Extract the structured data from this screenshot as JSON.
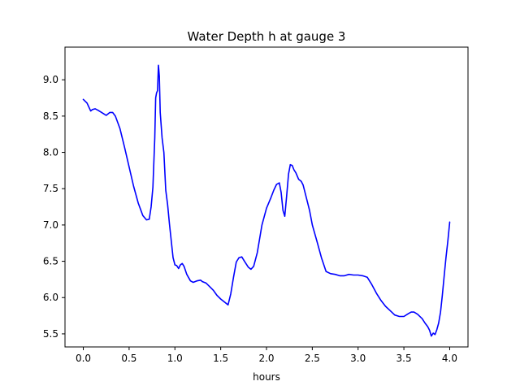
{
  "chart_data": {
    "type": "line",
    "title": "Water Depth h at gauge 3",
    "xlabel": "hours",
    "ylabel": "",
    "xlim": [
      -0.2,
      4.2
    ],
    "ylim": [
      5.32,
      9.45
    ],
    "xticks": [
      0.0,
      0.5,
      1.0,
      1.5,
      2.0,
      2.5,
      3.0,
      3.5,
      4.0
    ],
    "xtick_labels": [
      "0.0",
      "0.5",
      "1.0",
      "1.5",
      "2.0",
      "2.5",
      "3.0",
      "3.5",
      "4.0"
    ],
    "yticks": [
      5.5,
      6.0,
      6.5,
      7.0,
      7.5,
      8.0,
      8.5,
      9.0
    ],
    "ytick_labels": [
      "5.5",
      "6.0",
      "6.5",
      "7.0",
      "7.5",
      "8.0",
      "8.5",
      "9.0"
    ],
    "grid": false,
    "colors": {
      "line": "#0000ff",
      "axes": "#000000",
      "background": "#ffffff"
    },
    "series": [
      {
        "x": [
          0.0,
          0.04,
          0.08,
          0.1,
          0.13,
          0.16,
          0.2,
          0.25,
          0.29,
          0.32,
          0.35,
          0.4,
          0.45,
          0.5,
          0.55,
          0.6,
          0.65,
          0.69,
          0.72,
          0.74,
          0.76,
          0.78,
          0.79,
          0.8,
          0.81,
          0.82,
          0.83,
          0.84,
          0.86,
          0.88,
          0.9,
          0.92,
          0.94,
          0.96,
          0.98,
          1.0,
          1.02,
          1.04,
          1.06,
          1.08,
          1.1,
          1.13,
          1.17,
          1.2,
          1.24,
          1.28,
          1.3,
          1.34,
          1.38,
          1.42,
          1.46,
          1.5,
          1.55,
          1.58,
          1.61,
          1.64,
          1.67,
          1.7,
          1.73,
          1.76,
          1.8,
          1.83,
          1.86,
          1.9,
          1.95,
          2.0,
          2.05,
          2.08,
          2.11,
          2.14,
          2.16,
          2.18,
          2.2,
          2.22,
          2.24,
          2.26,
          2.28,
          2.3,
          2.32,
          2.35,
          2.38,
          2.4,
          2.43,
          2.47,
          2.5,
          2.55,
          2.6,
          2.65,
          2.7,
          2.75,
          2.8,
          2.85,
          2.9,
          2.95,
          3.0,
          3.05,
          3.1,
          3.15,
          3.2,
          3.25,
          3.3,
          3.35,
          3.4,
          3.45,
          3.5,
          3.55,
          3.58,
          3.61,
          3.65,
          3.7,
          3.73,
          3.76,
          3.78,
          3.8,
          3.82,
          3.84,
          3.86,
          3.88,
          3.9,
          3.92,
          3.94,
          3.96,
          3.98,
          4.0
        ],
        "y": [
          8.73,
          8.68,
          8.57,
          8.59,
          8.6,
          8.58,
          8.55,
          8.51,
          8.55,
          8.55,
          8.5,
          8.33,
          8.07,
          7.8,
          7.53,
          7.3,
          7.13,
          7.07,
          7.08,
          7.25,
          7.52,
          8.2,
          8.75,
          8.82,
          8.85,
          9.2,
          9.05,
          8.55,
          8.2,
          8.0,
          7.48,
          7.28,
          7.02,
          6.78,
          6.55,
          6.45,
          6.44,
          6.4,
          6.45,
          6.47,
          6.43,
          6.32,
          6.23,
          6.21,
          6.23,
          6.24,
          6.22,
          6.2,
          6.15,
          6.1,
          6.03,
          5.98,
          5.93,
          5.9,
          6.05,
          6.28,
          6.49,
          6.55,
          6.56,
          6.5,
          6.42,
          6.39,
          6.43,
          6.62,
          7.0,
          7.23,
          7.38,
          7.48,
          7.56,
          7.58,
          7.45,
          7.2,
          7.12,
          7.4,
          7.7,
          7.83,
          7.82,
          7.76,
          7.72,
          7.63,
          7.6,
          7.55,
          7.4,
          7.2,
          7.0,
          6.78,
          6.55,
          6.36,
          6.33,
          6.32,
          6.3,
          6.3,
          6.32,
          6.31,
          6.31,
          6.3,
          6.28,
          6.18,
          6.06,
          5.96,
          5.88,
          5.82,
          5.76,
          5.74,
          5.74,
          5.78,
          5.8,
          5.8,
          5.77,
          5.71,
          5.65,
          5.6,
          5.55,
          5.47,
          5.51,
          5.49,
          5.56,
          5.65,
          5.8,
          6.03,
          6.3,
          6.55,
          6.78,
          7.04
        ]
      }
    ]
  }
}
